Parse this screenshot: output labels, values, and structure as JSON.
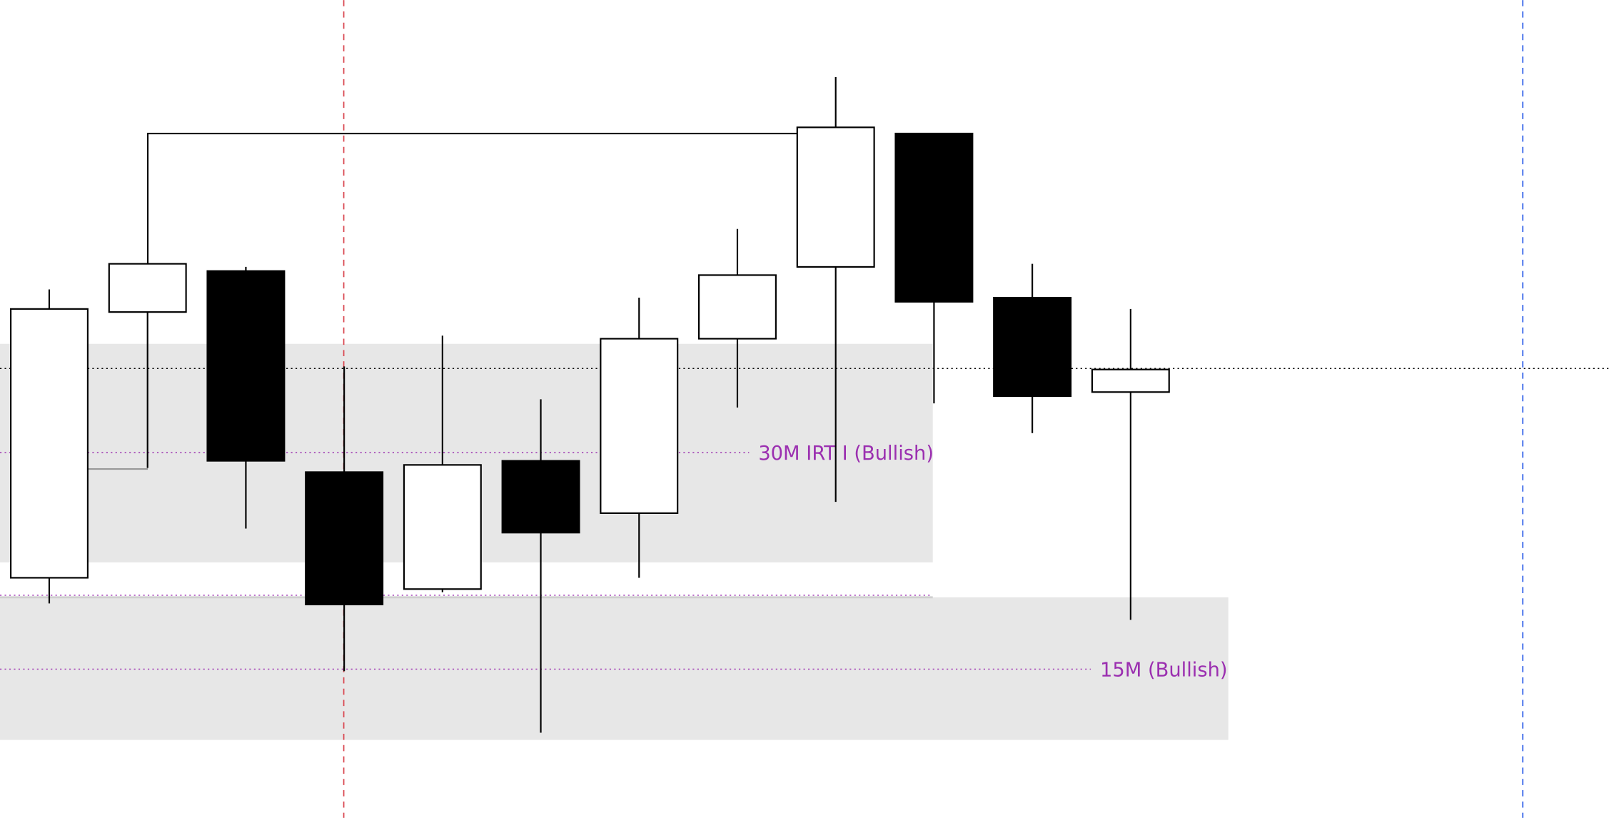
{
  "chart_data": {
    "type": "candlestick",
    "title": "",
    "xlabel": "",
    "ylabel": "",
    "grid": false,
    "colors": {
      "bullish": "#ffffff",
      "bearish": "#000000",
      "zone": "#e7e7e7",
      "label": "#9b2fb0",
      "session_line": "#d9464f",
      "current_line": "#2e5fe8"
    },
    "candles": [
      {
        "open": 237,
        "high": 518,
        "low": 212,
        "close": 499
      },
      {
        "open": 496,
        "high": 543,
        "low": 344,
        "close": 543
      },
      {
        "open": 536,
        "high": 540,
        "low": 285,
        "close": 351
      },
      {
        "open": 340,
        "high": 443,
        "low": 146,
        "close": 211
      },
      {
        "open": 226,
        "high": 473,
        "low": 223,
        "close": 347
      },
      {
        "open": 351,
        "high": 411,
        "low": 86,
        "close": 281
      },
      {
        "open": 300,
        "high": 510,
        "low": 237,
        "close": 470
      },
      {
        "open": 470,
        "high": 577,
        "low": 403,
        "close": 532
      },
      {
        "open": 540,
        "high": 725,
        "low": 311,
        "close": 676
      },
      {
        "open": 670,
        "high": 670,
        "low": 407,
        "close": 506
      },
      {
        "open": 510,
        "high": 543,
        "low": 378,
        "close": 414
      },
      {
        "open": 418,
        "high": 499,
        "low": 196,
        "close": 440
      }
    ],
    "zones": [
      {
        "label": "30M IRT I (Bullish)",
        "top": 465,
        "bottom": 252,
        "mid": 359,
        "from_candle": 0,
        "to_candle": 9
      },
      {
        "label": "15M (Bullish)",
        "top": 218,
        "bottom": 79,
        "mid": 148,
        "from_candle": 0,
        "to_candle": 12
      }
    ],
    "levels": {
      "current_price": 441,
      "swing_high": 670,
      "lower_level": 220
    },
    "annotations": {
      "zone1_label": "30M IRT I (Bullish)",
      "zone2_label": "15M (Bullish)"
    }
  }
}
